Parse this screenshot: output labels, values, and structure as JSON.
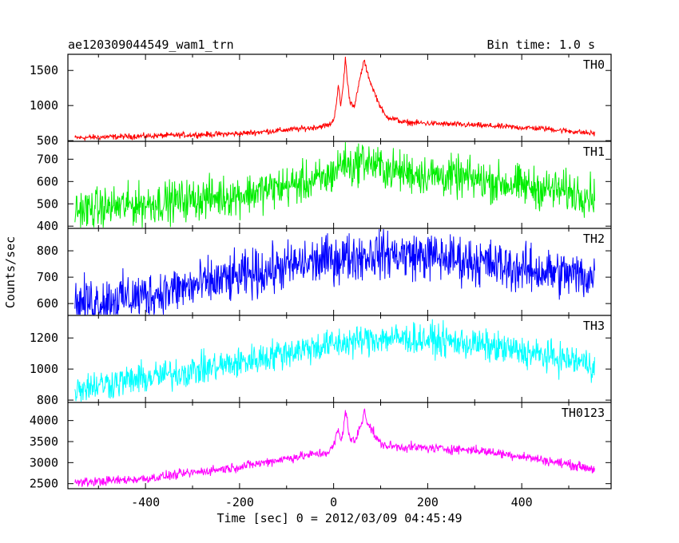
{
  "chart_data": {
    "type": "line",
    "title": "ae120309044549_wam1_trn",
    "bin_time_label": "Bin time: 1.0 s",
    "xlabel": "Time [sec] 0 = 2012/03/09 04:45:49",
    "ylabel": "Counts/sec",
    "xlim": [
      -565,
      590
    ],
    "x_ticks": [
      -400,
      -200,
      0,
      200,
      400
    ],
    "x_range": [
      -550,
      555
    ],
    "panels": [
      {
        "name": "TH0",
        "color": "#ff0000",
        "ylim": [
          490,
          1730
        ],
        "y_ticks": [
          500,
          1000,
          1500
        ],
        "noise": 20,
        "keypoints": [
          [
            -550,
            540
          ],
          [
            -200,
            600
          ],
          [
            -50,
            680
          ],
          [
            -10,
            720
          ],
          [
            0,
            790
          ],
          [
            5,
            1000
          ],
          [
            10,
            1280
          ],
          [
            15,
            1000
          ],
          [
            20,
            1250
          ],
          [
            25,
            1680
          ],
          [
            30,
            1300
          ],
          [
            35,
            1050
          ],
          [
            45,
            1000
          ],
          [
            55,
            1350
          ],
          [
            60,
            1500
          ],
          [
            65,
            1650
          ],
          [
            70,
            1500
          ],
          [
            80,
            1300
          ],
          [
            95,
            1050
          ],
          [
            110,
            850
          ],
          [
            150,
            760
          ],
          [
            300,
            720
          ],
          [
            450,
            670
          ],
          [
            555,
            600
          ]
        ]
      },
      {
        "name": "TH1",
        "color": "#00ee00",
        "ylim": [
          390,
          780
        ],
        "y_ticks": [
          400,
          500,
          600,
          700
        ],
        "noise": 45,
        "keypoints": [
          [
            -550,
            470
          ],
          [
            -400,
            500
          ],
          [
            -200,
            540
          ],
          [
            -100,
            580
          ],
          [
            -20,
            610
          ],
          [
            0,
            640
          ],
          [
            20,
            690
          ],
          [
            40,
            660
          ],
          [
            60,
            700
          ],
          [
            80,
            680
          ],
          [
            120,
            650
          ],
          [
            200,
            630
          ],
          [
            300,
            610
          ],
          [
            400,
            580
          ],
          [
            555,
            540
          ]
        ]
      },
      {
        "name": "TH2",
        "color": "#0000ff",
        "ylim": [
          555,
          885
        ],
        "y_ticks": [
          600,
          700,
          800
        ],
        "noise": 45,
        "keypoints": [
          [
            -550,
            600
          ],
          [
            -400,
            630
          ],
          [
            -200,
            700
          ],
          [
            -100,
            740
          ],
          [
            0,
            770
          ],
          [
            100,
            790
          ],
          [
            200,
            780
          ],
          [
            300,
            760
          ],
          [
            400,
            730
          ],
          [
            555,
            700
          ]
        ]
      },
      {
        "name": "TH3",
        "color": "#00ffff",
        "ylim": [
          785,
          1345
        ],
        "y_ticks": [
          800,
          1000,
          1200
        ],
        "noise": 50,
        "keypoints": [
          [
            -550,
            880
          ],
          [
            -400,
            940
          ],
          [
            -200,
            1040
          ],
          [
            -100,
            1110
          ],
          [
            0,
            1160
          ],
          [
            100,
            1200
          ],
          [
            200,
            1190
          ],
          [
            300,
            1160
          ],
          [
            400,
            1110
          ],
          [
            555,
            1030
          ]
        ]
      },
      {
        "name": "TH0123",
        "color": "#ff00ff",
        "ylim": [
          2380,
          4430
        ],
        "y_ticks": [
          2500,
          3000,
          3500,
          4000
        ],
        "noise": 55,
        "keypoints": [
          [
            -550,
            2520
          ],
          [
            -400,
            2620
          ],
          [
            -200,
            2900
          ],
          [
            -100,
            3100
          ],
          [
            -10,
            3250
          ],
          [
            0,
            3400
          ],
          [
            5,
            3600
          ],
          [
            10,
            3800
          ],
          [
            15,
            3500
          ],
          [
            20,
            3700
          ],
          [
            25,
            4300
          ],
          [
            30,
            3900
          ],
          [
            35,
            3550
          ],
          [
            45,
            3500
          ],
          [
            55,
            3800
          ],
          [
            62,
            4000
          ],
          [
            65,
            4350
          ],
          [
            70,
            4000
          ],
          [
            80,
            3800
          ],
          [
            95,
            3500
          ],
          [
            110,
            3400
          ],
          [
            150,
            3370
          ],
          [
            300,
            3300
          ],
          [
            400,
            3150
          ],
          [
            555,
            2850
          ]
        ]
      }
    ]
  }
}
